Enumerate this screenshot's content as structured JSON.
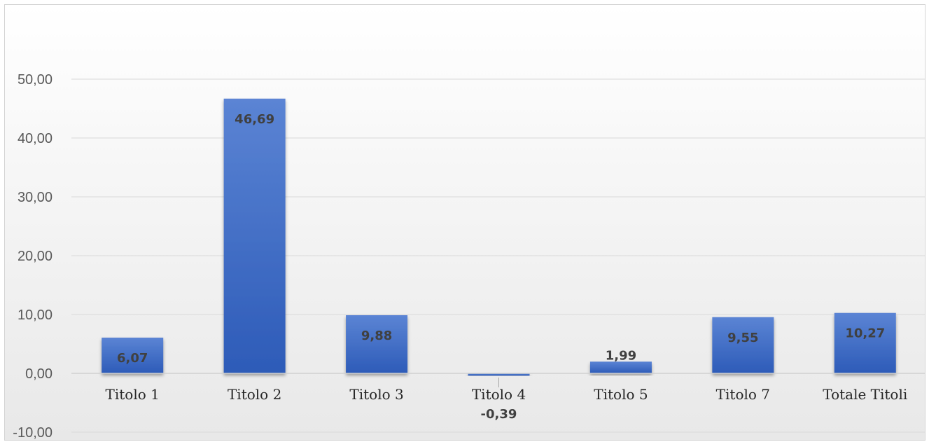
{
  "chart_data": {
    "type": "bar",
    "categories": [
      "Titolo 1",
      "Titolo 2",
      "Titolo 3",
      "Titolo 4",
      "Titolo 5",
      "Titolo 7",
      "Totale Titoli"
    ],
    "values": [
      6.07,
      46.69,
      9.88,
      -0.39,
      1.99,
      9.55,
      10.27
    ],
    "value_labels": [
      "6,07",
      "46,69",
      "9,88",
      "-0,39",
      "1,99",
      "9,55",
      "10,27"
    ],
    "y_ticks": [
      -10,
      0,
      10,
      20,
      30,
      40,
      50
    ],
    "y_tick_labels": [
      "-10,00",
      "0,00",
      "10,00",
      "20,00",
      "30,00",
      "40,00",
      "50,00"
    ],
    "ylim": [
      -10,
      50
    ],
    "grid": true,
    "legend": "none",
    "title": "",
    "xlabel": "",
    "ylabel": "",
    "colors": {
      "bar_top": "#5b84d4",
      "bar_bottom": "#2d5bb8",
      "grid": "#d9d9d9",
      "background_top": "#ffffff",
      "background_bottom": "#e8e8e8"
    }
  }
}
